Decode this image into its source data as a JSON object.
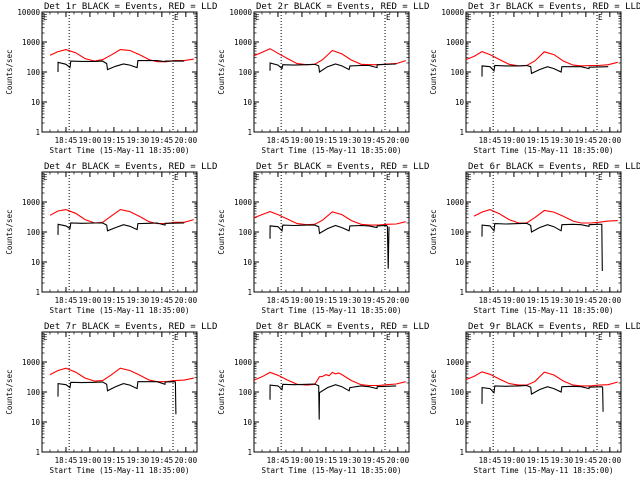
{
  "chart_data": {
    "type": "line",
    "yscale": "log",
    "ylim": [
      1,
      10000
    ],
    "grid": false,
    "ylabel": "Counts/sec",
    "xlabel": "Start Time (15-May-11 18:35:00)",
    "xtick_labels": [
      "18:45",
      "19:00",
      "19:15",
      "19:30",
      "19:45",
      "20:00"
    ],
    "xlim_minutes_after_start": [
      -5,
      92
    ],
    "corner_marker": "E",
    "colors": {
      "events": "#000000",
      "lld": "#ff0000"
    },
    "panels": [
      {
        "title": "Det 1r BLACK = Events, RED = LLD",
        "yticks": [
          "1",
          "10",
          "100",
          "1000",
          "10000"
        ],
        "vlines": [
          12,
          77
        ],
        "series": [
          {
            "color": "#ff0000",
            "x": [
              0,
              5,
              10,
              16,
              22,
              28,
              33,
              38,
              44,
              50,
              56,
              62,
              67,
              73,
              78,
              84,
              90
            ],
            "values": [
              360,
              480,
              560,
              440,
              280,
              230,
              260,
              360,
              560,
              520,
              380,
              260,
              220,
              220,
              240,
              240,
              270
            ]
          },
          {
            "color": "#000000",
            "x": [
              5,
              5.1,
              10,
              12.5,
              13,
              20,
              28,
              33,
              35.5,
              36,
              41,
              46,
              50,
              54.5,
              55,
              60,
              67,
              72,
              72.1,
              84
            ],
            "values": [
              100,
              210,
              180,
              140,
              230,
              225,
              225,
              230,
              190,
              120,
              155,
              185,
              170,
              140,
              240,
              240,
              240,
              220,
              230,
              230
            ]
          }
        ]
      },
      {
        "title": "Det 2r BLACK = Events, RED = LLD",
        "yticks": [
          "1",
          "10",
          "100",
          "1000",
          "10000"
        ],
        "vlines": [
          12,
          77
        ],
        "series": [
          {
            "color": "#ff0000",
            "x": [
              -5,
              0,
              5,
              10,
              16,
              22,
              28,
              33,
              38,
              44,
              50,
              56,
              62,
              67,
              73,
              78,
              84,
              90
            ],
            "values": [
              350,
              450,
              600,
              420,
              280,
              190,
              175,
              180,
              260,
              520,
              400,
              250,
              180,
              175,
              175,
              185,
              190,
              240
            ]
          },
          {
            "color": "#000000",
            "x": [
              5,
              5.1,
              10,
              12.5,
              13,
              20,
              28,
              33,
              35.5,
              36,
              41,
              46,
              50,
              54.5,
              55,
              62,
              67,
              72,
              72.1,
              84
            ],
            "values": [
              110,
              200,
              170,
              130,
              175,
              170,
              175,
              180,
              160,
              100,
              150,
              185,
              160,
              120,
              160,
              165,
              165,
              140,
              175,
              185
            ]
          }
        ]
      },
      {
        "title": "Det 3r BLACK = Events, RED = LLD",
        "yticks": [
          "1",
          "10",
          "100",
          "1000",
          "10000"
        ],
        "vlines": [
          12,
          77
        ],
        "series": [
          {
            "color": "#ff0000",
            "x": [
              -5,
              0,
              5,
              10,
              16,
              22,
              28,
              33,
              38,
              44,
              50,
              56,
              62,
              67,
              73,
              78,
              84,
              90
            ],
            "values": [
              260,
              330,
              480,
              380,
              260,
              180,
              160,
              165,
              230,
              470,
              380,
              230,
              170,
              160,
              165,
              165,
              175,
              210
            ]
          },
          {
            "color": "#000000",
            "x": [
              5,
              5.1,
              10,
              12.5,
              13,
              20,
              28,
              33,
              35.5,
              36,
              41,
              46,
              50,
              54.5,
              55,
              62,
              67,
              72,
              72.1,
              84
            ],
            "values": [
              70,
              160,
              150,
              110,
              165,
              160,
              160,
              165,
              150,
              90,
              120,
              150,
              130,
              100,
              150,
              150,
              150,
              130,
              145,
              150
            ]
          }
        ]
      },
      {
        "title": "Det 4r BLACK = Events, RED = LLD",
        "yticks": [
          "1",
          "10",
          "100",
          "1000"
        ],
        "vlines": [
          12,
          77
        ],
        "series": [
          {
            "color": "#ff0000",
            "x": [
              0,
              5,
              10,
              16,
              22,
              28,
              33,
              38,
              44,
              50,
              56,
              62,
              67,
              73,
              78,
              84,
              90
            ],
            "values": [
              360,
              500,
              560,
              420,
              260,
              200,
              210,
              330,
              560,
              480,
              330,
              220,
              190,
              190,
              210,
              210,
              260
            ]
          },
          {
            "color": "#000000",
            "x": [
              5,
              5.1,
              10,
              12.5,
              13,
              20,
              28,
              33,
              35.5,
              36,
              41,
              46,
              50,
              54.5,
              55,
              62,
              67,
              72,
              72.1,
              84
            ],
            "values": [
              80,
              180,
              160,
              130,
              200,
              195,
              200,
              200,
              170,
              110,
              140,
              175,
              155,
              120,
              190,
              195,
              200,
              170,
              195,
              200
            ]
          }
        ]
      },
      {
        "title": "Det 5r BLACK = Events, RED = LLD",
        "yticks": [
          "1",
          "10",
          "100",
          "1000"
        ],
        "vlines": [
          12,
          77
        ],
        "series": [
          {
            "color": "#ff0000",
            "x": [
              -5,
              0,
              5,
              10,
              16,
              22,
              28,
              33,
              38,
              44,
              50,
              56,
              62,
              67,
              73,
              78,
              84,
              90
            ],
            "values": [
              300,
              380,
              480,
              380,
              270,
              190,
              175,
              180,
              250,
              470,
              380,
              240,
              180,
              170,
              170,
              180,
              185,
              220
            ]
          },
          {
            "color": "#000000",
            "x": [
              5,
              5.1,
              10,
              12.5,
              13,
              20,
              28,
              33,
              35.5,
              36,
              41,
              46,
              50,
              54.5,
              55,
              62,
              67,
              72,
              72.1,
              78,
              78.5,
              79,
              79.5
            ],
            "values": [
              60,
              160,
              150,
              110,
              170,
              165,
              170,
              170,
              150,
              90,
              130,
              165,
              140,
              110,
              160,
              165,
              160,
              140,
              160,
              165,
              150,
              6,
              150
            ]
          }
        ]
      },
      {
        "title": "Det 6r BLACK = Events, RED = LLD",
        "yticks": [
          "1",
          "10",
          "100",
          "1000"
        ],
        "vlines": [
          12,
          77
        ],
        "series": [
          {
            "color": "#ff0000",
            "x": [
              0,
              5,
              10,
              16,
              22,
              28,
              33,
              38,
              44,
              50,
              56,
              62,
              67,
              73,
              78,
              84,
              90
            ],
            "values": [
              340,
              460,
              560,
              400,
              260,
              200,
              200,
              300,
              520,
              460,
              330,
              230,
              200,
              200,
              210,
              230,
              240
            ]
          },
          {
            "color": "#000000",
            "x": [
              5,
              5.1,
              10,
              12.5,
              13,
              20,
              28,
              33,
              35.5,
              36,
              41,
              46,
              50,
              54.5,
              55,
              62,
              67,
              72,
              72.1,
              78,
              80,
              80.3
            ],
            "values": [
              70,
              170,
              160,
              110,
              190,
              185,
              190,
              195,
              165,
              100,
              140,
              175,
              150,
              110,
              175,
              180,
              175,
              155,
              175,
              180,
              180,
              5
            ]
          }
        ]
      },
      {
        "title": "Det 7r BLACK = Events, RED = LLD",
        "yticks": [
          "1",
          "10",
          "100",
          "1000"
        ],
        "vlines": [
          12,
          77
        ],
        "series": [
          {
            "color": "#ff0000",
            "x": [
              0,
              5,
              10,
              16,
              22,
              28,
              33,
              38,
              44,
              50,
              56,
              62,
              67,
              73,
              78,
              84,
              90
            ],
            "values": [
              380,
              520,
              620,
              460,
              290,
              230,
              240,
              360,
              620,
              520,
              370,
              250,
              220,
              220,
              240,
              250,
              290
            ]
          },
          {
            "color": "#000000",
            "x": [
              5,
              5.1,
              10,
              12.5,
              13,
              20,
              28,
              33,
              35.5,
              36,
              41,
              46,
              50,
              54.5,
              55,
              62,
              67,
              72,
              72.1,
              78,
              78.5,
              78.8
            ],
            "values": [
              70,
              190,
              175,
              140,
              210,
              205,
              210,
              215,
              180,
              110,
              150,
              190,
              170,
              130,
              220,
              220,
              220,
              180,
              215,
              220,
              215,
              18
            ]
          }
        ]
      },
      {
        "title": "Det 8r BLACK = Events, RED = LLD",
        "yticks": [
          "1",
          "10",
          "100",
          "1000"
        ],
        "vlines": [
          12,
          77
        ],
        "series": [
          {
            "color": "#ff0000",
            "x": [
              -5,
              0,
              5,
              10,
              16,
              22,
              28,
              33,
              36,
              38,
              40,
              42,
              44,
              46,
              48,
              50,
              56,
              62,
              67,
              73,
              78,
              84,
              90
            ],
            "values": [
              250,
              320,
              450,
              360,
              250,
              180,
              170,
              180,
              320,
              330,
              380,
              350,
              450,
              400,
              430,
              380,
              240,
              175,
              165,
              165,
              175,
              185,
              220
            ]
          },
          {
            "color": "#000000",
            "x": [
              5,
              5.1,
              10,
              12.5,
              13,
              20,
              28,
              33,
              35.5,
              35.8,
              36,
              41,
              46,
              50,
              54.5,
              55,
              62,
              67,
              72,
              72.1,
              84
            ],
            "values": [
              55,
              170,
              160,
              120,
              180,
              175,
              180,
              185,
              160,
              12,
              95,
              140,
              175,
              150,
              110,
              140,
              160,
              150,
              130,
              150,
              160
            ]
          }
        ]
      },
      {
        "title": "Det 9r BLACK = Events, RED = LLD",
        "yticks": [
          "1",
          "10",
          "100",
          "1000"
        ],
        "vlines": [
          12,
          77
        ],
        "series": [
          {
            "color": "#ff0000",
            "x": [
              -5,
              0,
              5,
              10,
              16,
              22,
              28,
              33,
              38,
              44,
              50,
              56,
              62,
              67,
              73,
              78,
              84,
              90
            ],
            "values": [
              260,
              330,
              470,
              390,
              270,
              190,
              170,
              170,
              220,
              460,
              370,
              230,
              170,
              160,
              160,
              170,
              175,
              215
            ]
          },
          {
            "color": "#000000",
            "x": [
              5,
              5.1,
              10,
              12.5,
              13,
              20,
              28,
              33,
              35.5,
              36,
              41,
              46,
              50,
              54.5,
              55,
              62,
              67,
              72,
              72.1,
              80,
              80.5,
              80.8
            ],
            "values": [
              40,
              140,
              130,
              95,
              160,
              155,
              160,
              165,
              145,
              85,
              120,
              150,
              130,
              100,
              150,
              155,
              150,
              130,
              145,
              150,
              145,
              22
            ]
          }
        ]
      }
    ]
  }
}
